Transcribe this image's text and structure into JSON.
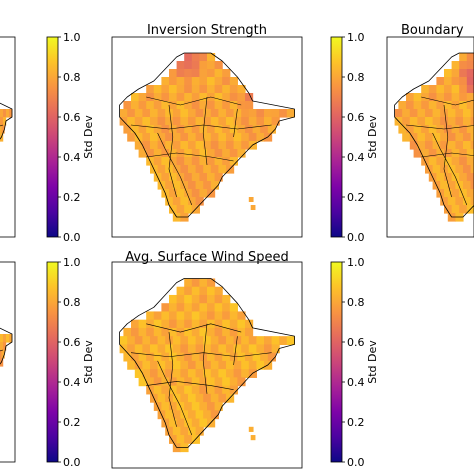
{
  "chart_data": [
    {
      "type": "heatmap",
      "title": "",
      "colorbar": {
        "label": "Std Dev",
        "range": [
          0.0,
          1.0
        ],
        "ticks": [
          "0.0",
          "0.2",
          "0.4",
          "0.6",
          "0.8",
          "1.0"
        ],
        "colormap": "plasma"
      },
      "typical_value": 0.8,
      "hotspots": [
        {
          "region": "north",
          "value": 0.55
        }
      ]
    },
    {
      "type": "heatmap",
      "title": "Inversion Strength",
      "colorbar": {
        "label": "Std Dev",
        "range": [
          0.0,
          1.0
        ],
        "ticks": [
          "0.0",
          "0.2",
          "0.4",
          "0.6",
          "0.8",
          "1.0"
        ],
        "colormap": "plasma"
      },
      "typical_value": 0.8,
      "hotspots": [
        {
          "region": "northwest",
          "value": 0.6
        },
        {
          "region": "northeast",
          "value": 0.6
        }
      ]
    },
    {
      "type": "heatmap",
      "title": "Boundary",
      "colorbar": {
        "label": "Std Dev",
        "range": [
          0.0,
          1.0
        ],
        "ticks": [
          "0.0",
          "0.2",
          "0.4",
          "0.6",
          "0.8",
          "1.0"
        ],
        "colormap": "plasma"
      },
      "typical_value": 0.8,
      "hotspots": [
        {
          "region": "north",
          "value": 0.5
        }
      ]
    },
    {
      "type": "heatmap",
      "title": "",
      "colorbar": {
        "label": "Std Dev",
        "range": [
          0.0,
          1.0
        ],
        "ticks": [
          "0.0",
          "0.2",
          "0.4",
          "0.6",
          "0.8",
          "1.0"
        ],
        "colormap": "plasma"
      },
      "typical_value": 0.8,
      "hotspots": []
    },
    {
      "type": "heatmap",
      "title": "Avg. Surface Wind Speed",
      "colorbar": {
        "label": "Std Dev",
        "range": [
          0.0,
          1.0
        ],
        "ticks": [
          "0.0",
          "0.2",
          "0.4",
          "0.6",
          "0.8",
          "1.0"
        ],
        "colormap": "plasma"
      },
      "typical_value": 0.82,
      "hotspots": []
    }
  ]
}
